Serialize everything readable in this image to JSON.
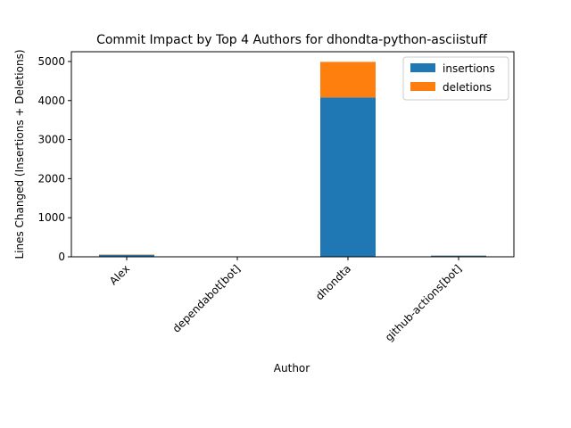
{
  "chart_data": {
    "type": "bar",
    "stacked": true,
    "title": "Commit Impact by Top 4 Authors for dhondta-python-asciistuff",
    "xlabel": "Author",
    "ylabel": "Lines Changed (Insertions + Deletions)",
    "categories": [
      "Alex",
      "dependabot[bot]",
      "dhondta",
      "github-actions[bot]"
    ],
    "series": [
      {
        "name": "insertions",
        "color": "#1f77b4",
        "values": [
          50,
          2,
          4080,
          30
        ]
      },
      {
        "name": "deletions",
        "color": "#ff7f0e",
        "values": [
          10,
          2,
          910,
          5
        ]
      }
    ],
    "ylim": [
      0,
      5250
    ],
    "yticks": [
      0,
      1000,
      2000,
      3000,
      4000,
      5000
    ],
    "ytick_labels": [
      "0",
      "1000",
      "2000",
      "3000",
      "4000",
      "5000"
    ],
    "legend_position": "top-right",
    "grid": false
  }
}
